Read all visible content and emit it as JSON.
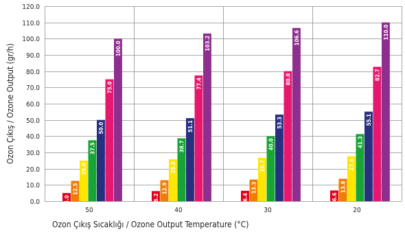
{
  "chart_data": {
    "type": "bar",
    "xlabel": "Ozon Çıkış Sıcaklığı / Ozone Output Temperature (°C)",
    "ylabel": "Ozon Çıkış / Ozone Output (gr/h)",
    "ylim": [
      0,
      120
    ],
    "ytick_step": 10,
    "grid": true,
    "categories": [
      "50",
      "40",
      "30",
      "20"
    ],
    "series": [
      {
        "color": "#e3001b",
        "values": [
          5.0,
          6.2,
          6.4,
          6.6
        ]
      },
      {
        "color": "#f07c00",
        "values": [
          12.5,
          12.9,
          13.3,
          13.8
        ]
      },
      {
        "color": "#ffe600",
        "values": [
          25.0,
          25.8,
          26.7,
          27.6
        ]
      },
      {
        "color": "#17a535",
        "values": [
          37.5,
          38.7,
          40.0,
          41.3
        ]
      },
      {
        "color": "#27307f",
        "values": [
          50.0,
          51.1,
          53.3,
          55.1
        ]
      },
      {
        "color": "#e5176e",
        "values": [
          75.0,
          77.4,
          80.0,
          82.7
        ]
      },
      {
        "color": "#8e2f8f",
        "values": [
          100.0,
          103.2,
          106.6,
          110.0
        ]
      }
    ]
  }
}
